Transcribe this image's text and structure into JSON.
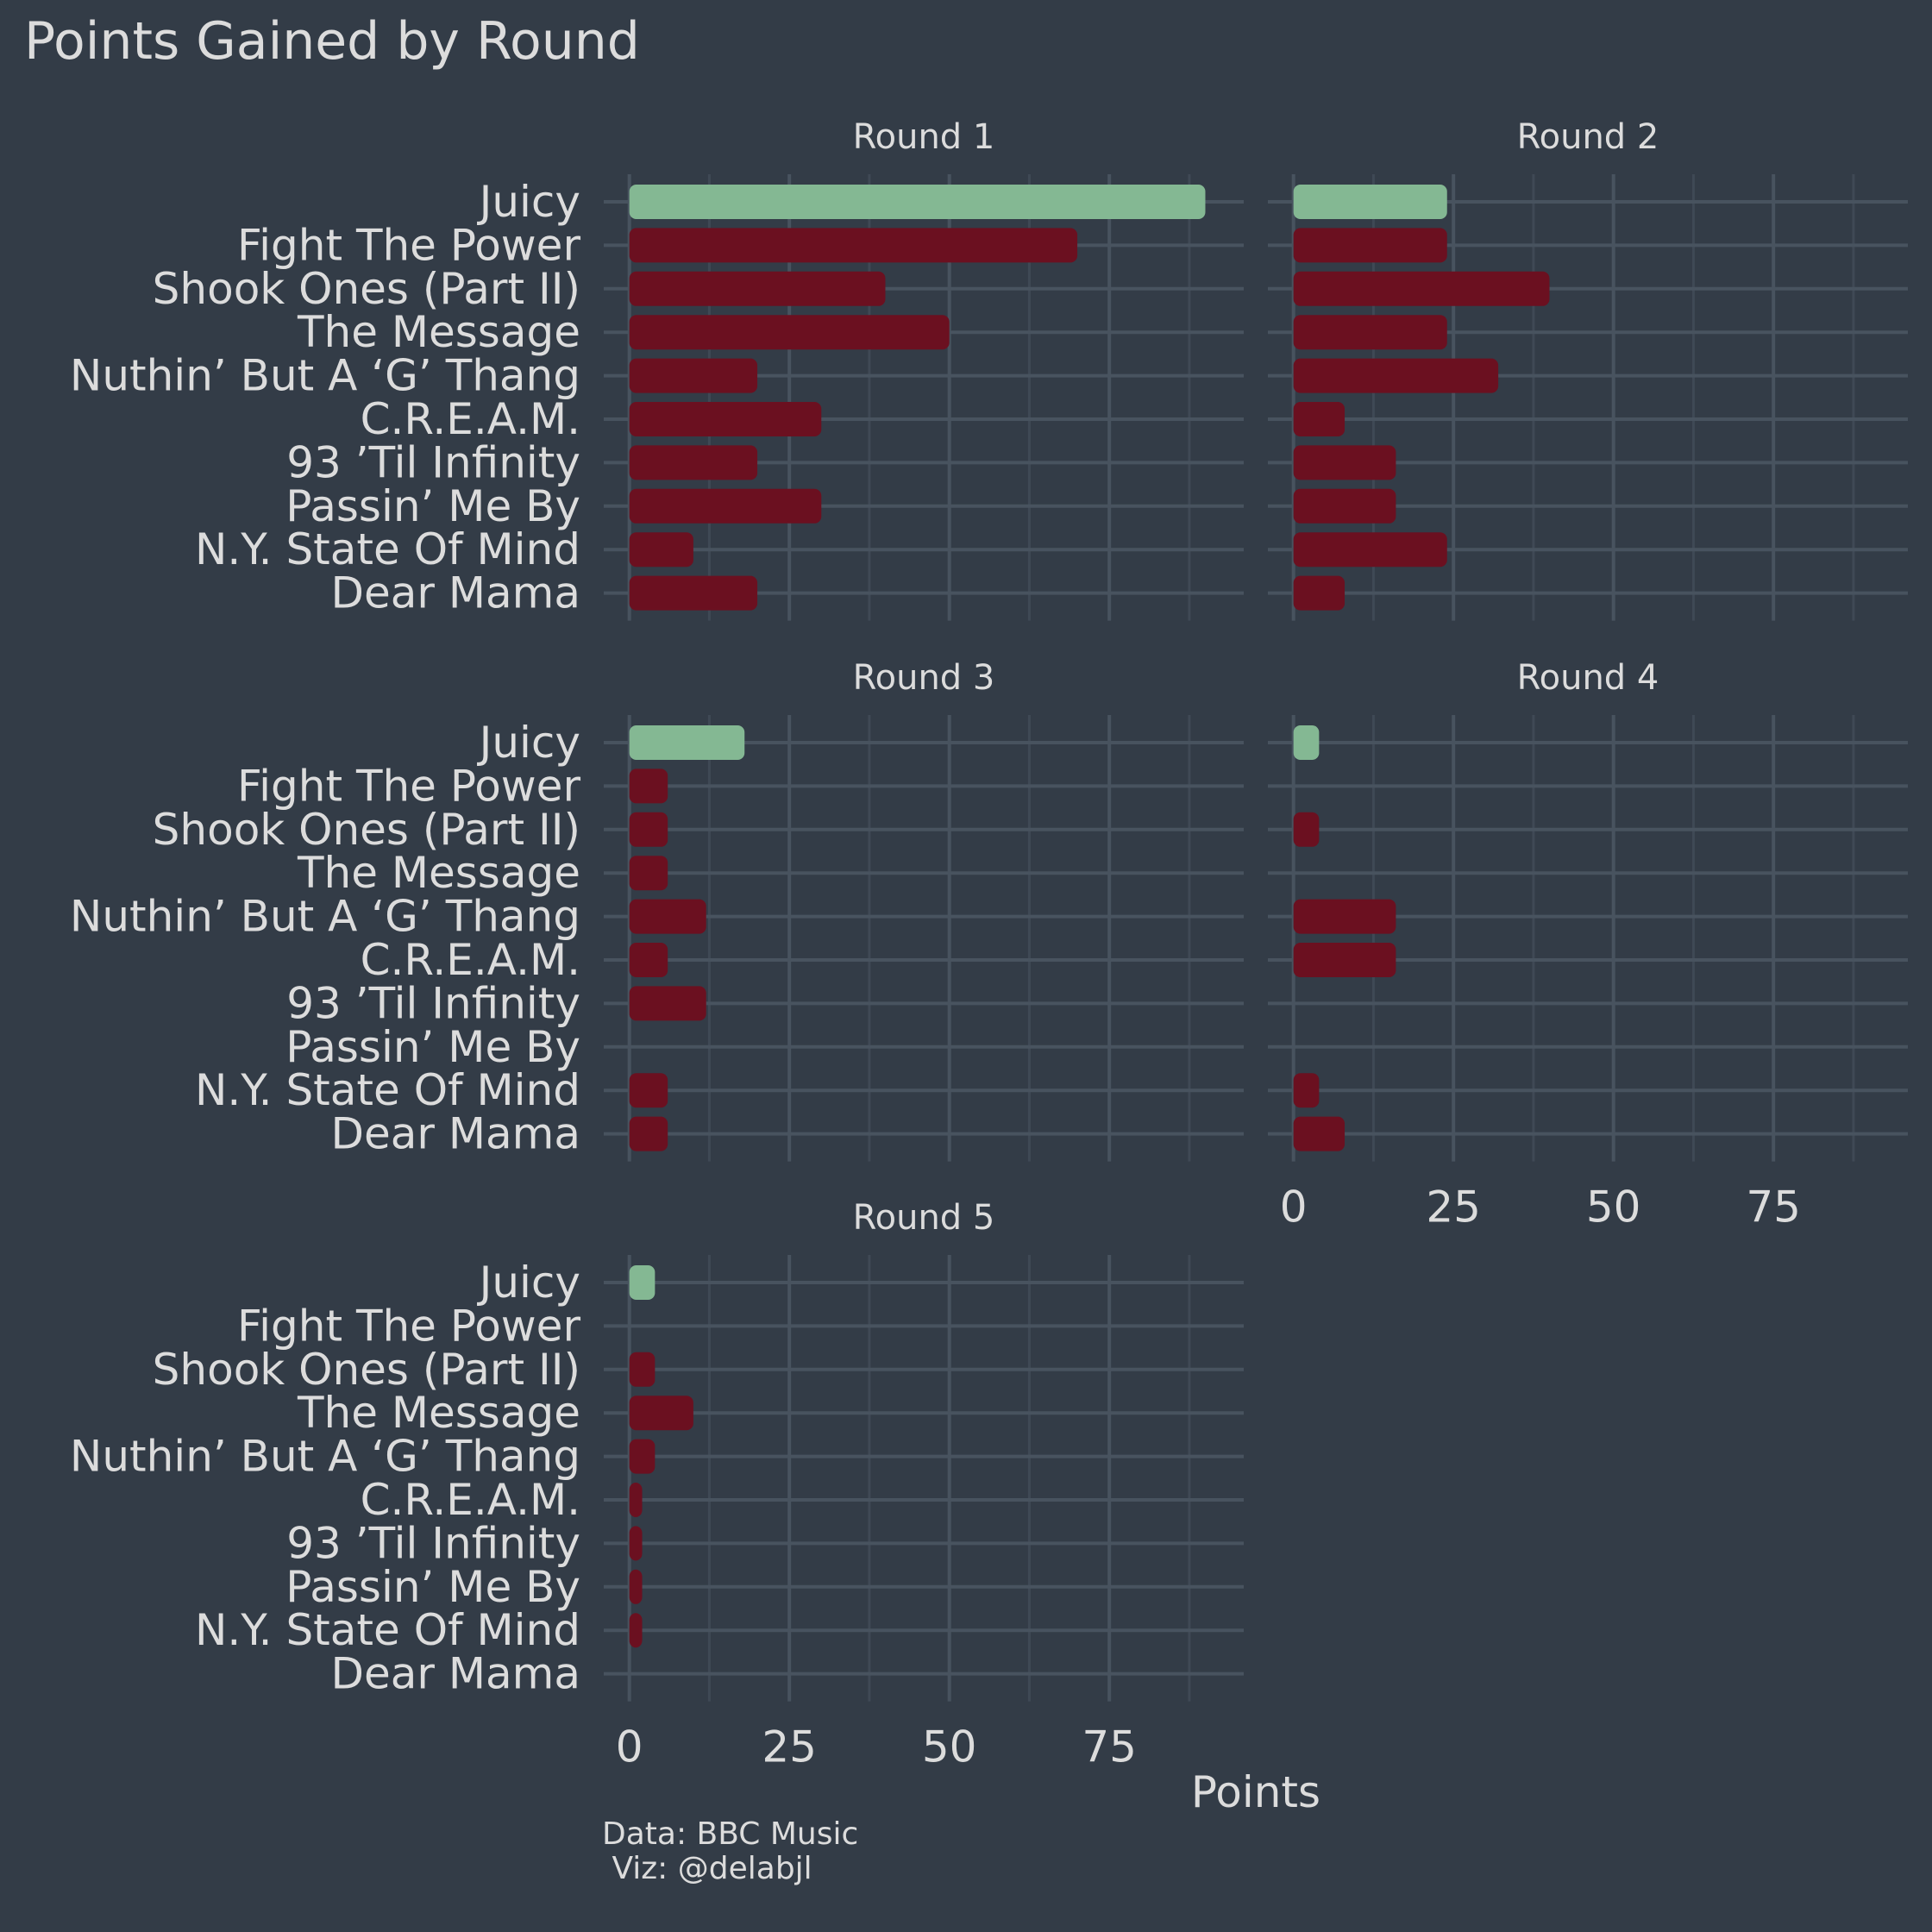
{
  "chart_data": {
    "type": "bar",
    "title": "Points Gained by Round",
    "xlabel": "Points",
    "caption": [
      "Data: BBC Music",
      " Viz: @delabjl"
    ],
    "songs": [
      "Juicy",
      "Fight The Power",
      "Shook Ones (Part II)",
      "The Message",
      "Nuthin’ But A ‘G’ Thang",
      "C.R.E.A.M.",
      "93 ’Til Infinity",
      "Passin’ Me By",
      "N.Y. State Of Mind",
      "Dear Mama"
    ],
    "xticks": [
      0,
      25,
      50,
      75
    ],
    "xlim": [
      -4,
      96
    ],
    "highlight_song": "Juicy",
    "colors": {
      "highlight": "#84b893",
      "other": "#6b1020",
      "background": "#333c47"
    },
    "panels": [
      {
        "name": "Round 1",
        "values": [
          90,
          70,
          40,
          50,
          20,
          30,
          20,
          30,
          10,
          20
        ]
      },
      {
        "name": "Round 2",
        "values": [
          24,
          24,
          40,
          24,
          32,
          8,
          16,
          16,
          24,
          8
        ]
      },
      {
        "name": "Round 3",
        "values": [
          18,
          6,
          6,
          6,
          12,
          6,
          12,
          0,
          6,
          6
        ]
      },
      {
        "name": "Round 4",
        "values": [
          4,
          0,
          4,
          0,
          16,
          16,
          0,
          0,
          4,
          8
        ]
      },
      {
        "name": "Round 5",
        "values": [
          4,
          0,
          4,
          10,
          4,
          2,
          2,
          2,
          2,
          0
        ]
      }
    ]
  }
}
